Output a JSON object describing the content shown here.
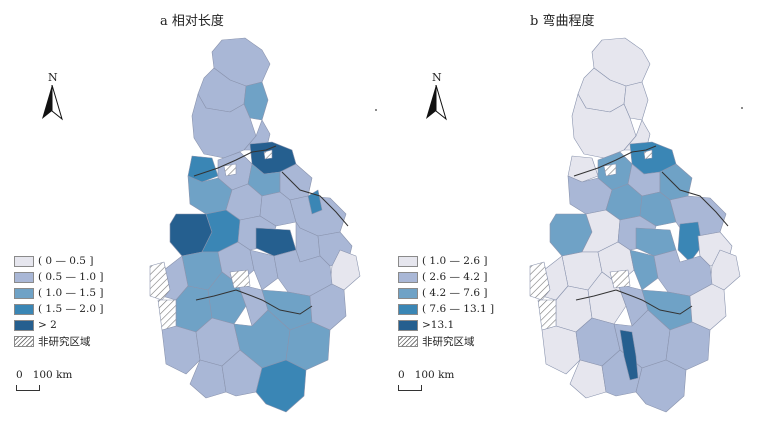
{
  "panels": [
    {
      "title": "a 相对长度",
      "north": "N",
      "scale": "0   100 km",
      "legend": [
        {
          "label": "( 0 — 0.5 ]",
          "color": "#e6e6ee"
        },
        {
          "label": "( 0.5 — 1.0 ]",
          "color": "#a9b7d6"
        },
        {
          "label": "( 1.0 — 1.5 ]",
          "color": "#6fa2c6"
        },
        {
          "label": "( 1.5 — 2.0 ]",
          "color": "#3a86b5"
        },
        {
          "label": "> 2",
          "color": "#255f8f"
        },
        {
          "label": "非研究区域",
          "color": "hatch"
        }
      ]
    },
    {
      "title": "b 弯曲程度",
      "north": "N",
      "scale": "0   100 km",
      "legend": [
        {
          "label": "( 1.0 — 2.6 ]",
          "color": "#e6e6ee"
        },
        {
          "label": "( 2.6 — 4.2 ]",
          "color": "#a9b7d6"
        },
        {
          "label": "( 4.2 — 7.6 ]",
          "color": "#6fa2c6"
        },
        {
          "label": "( 7.6 — 13.1 ]",
          "color": "#3a86b5"
        },
        {
          "label": ">13.1",
          "color": "#255f8f"
        },
        {
          "label": "非研究区域",
          "color": "hatch"
        }
      ]
    }
  ]
}
